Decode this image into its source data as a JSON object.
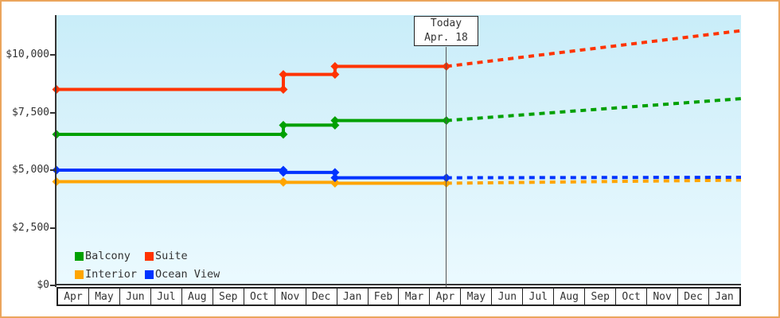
{
  "frame": {
    "border_color": "#EBA55C",
    "background": "#FFFFFF"
  },
  "chart_data": {
    "type": "line",
    "title": "",
    "description": "Cruise cabin price history by category with dashed future price projection",
    "x_axis": {
      "unit": "month",
      "tick_labels": [
        "Apr",
        "May",
        "Jun",
        "Jul",
        "Aug",
        "Sep",
        "Oct",
        "Nov",
        "Dec",
        "Jan",
        "Feb",
        "Mar",
        "Apr",
        "May",
        "Jun",
        "Jul",
        "Aug",
        "Sep",
        "Oct",
        "Nov",
        "Dec",
        "Jan"
      ],
      "span_months": 22
    },
    "y_axis": {
      "tick_labels": [
        "$0",
        "$2,500",
        "$5,000",
        "$7,500",
        "$10,000"
      ],
      "tick_values": [
        0,
        2500,
        5000,
        7500,
        10000
      ],
      "range": [
        0,
        11700
      ],
      "grid": false
    },
    "today": {
      "label": "Today",
      "date": "Apr. 18",
      "month_index": 12.53
    },
    "series": [
      {
        "name": "Interior",
        "color": "#FFA500",
        "history": [
          [
            0,
            4500
          ],
          [
            7.29,
            4500
          ],
          [
            7.29,
            4470
          ],
          [
            8.95,
            4470
          ],
          [
            8.95,
            4430
          ],
          [
            12.53,
            4430
          ]
        ],
        "projection": [
          [
            12.53,
            4430
          ],
          [
            22,
            4570
          ]
        ]
      },
      {
        "name": "Ocean View",
        "color": "#0033FF",
        "history": [
          [
            0,
            5000
          ],
          [
            7.29,
            5000
          ],
          [
            7.29,
            4900
          ],
          [
            8.95,
            4900
          ],
          [
            8.95,
            4670
          ],
          [
            12.53,
            4670
          ]
        ],
        "projection": [
          [
            12.53,
            4670
          ],
          [
            22,
            4690
          ]
        ]
      },
      {
        "name": "Balcony",
        "color": "#00A000",
        "history": [
          [
            0,
            6550
          ],
          [
            7.29,
            6550
          ],
          [
            7.29,
            6950
          ],
          [
            8.95,
            6950
          ],
          [
            8.95,
            7150
          ],
          [
            12.53,
            7150
          ]
        ],
        "projection": [
          [
            12.53,
            7150
          ],
          [
            22,
            8100
          ]
        ]
      },
      {
        "name": "Suite",
        "color": "#FF3300",
        "history": [
          [
            0,
            8500
          ],
          [
            7.29,
            8500
          ],
          [
            7.29,
            9150
          ],
          [
            8.95,
            9150
          ],
          [
            8.95,
            9500
          ],
          [
            12.53,
            9500
          ]
        ],
        "projection": [
          [
            12.53,
            9500
          ],
          [
            22,
            11050
          ]
        ]
      }
    ],
    "legend": [
      {
        "label": "Balcony",
        "color": "#00A000"
      },
      {
        "label": "Suite",
        "color": "#FF3300"
      },
      {
        "label": "Interior",
        "color": "#FFA500"
      },
      {
        "label": "Ocean View",
        "color": "#0033FF"
      }
    ],
    "legend_position": "bottom-left",
    "style": {
      "line_width": 4,
      "marker": "diamond",
      "marker_radius": 5.5,
      "projection_dash": [
        7,
        6
      ],
      "plot_bg_top": "#C9EDF9",
      "plot_bg_bottom": "#EBFAFF",
      "axis_color": "#333333",
      "today_line_color": "#555555"
    }
  }
}
